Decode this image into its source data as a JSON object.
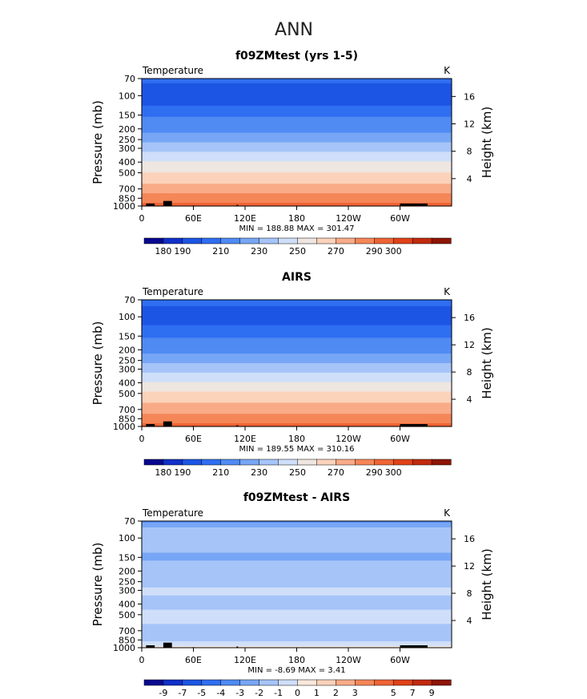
{
  "page": {
    "title": "ANN"
  },
  "colors": {
    "abs_bins": [
      "#08088f",
      "#1030c8",
      "#1c55e4",
      "#2f6ef0",
      "#4f8bf3",
      "#77a6f6",
      "#a6c4f8",
      "#cfdff9",
      "#eee6e0",
      "#fbd2ba",
      "#f9ab88",
      "#f58658",
      "#ef6434",
      "#e04218",
      "#c12a0d",
      "#8e1506"
    ],
    "diff_bins": [
      "#08088f",
      "#1030c8",
      "#1c55e4",
      "#2f6ef0",
      "#4f8bf3",
      "#77a6f6",
      "#a6c4f8",
      "#cfdff9",
      "#fbe8dd",
      "#fbd2ba",
      "#f9ab88",
      "#f58658",
      "#ef6434",
      "#e04218",
      "#c12a0d",
      "#8e1506"
    ],
    "topo": "#000000"
  },
  "chart_data": [
    {
      "type": "heatmap",
      "title": "f09ZMtest (yrs 1-5)",
      "variable_label": "Temperature",
      "units_label": "K",
      "ylabel": "Pressure (mb)",
      "ylabel_right": "Height (km)",
      "x_ticks": [
        "0",
        "60E",
        "120E",
        "180",
        "120W",
        "60W"
      ],
      "x_tick_values": [
        0,
        60,
        120,
        180,
        240,
        300
      ],
      "xlim": [
        0,
        360
      ],
      "y_ticks": [
        "70",
        "100",
        "150",
        "200",
        "250",
        "300",
        "400",
        "500",
        "700",
        "850",
        "1000"
      ],
      "y_tick_values": [
        70,
        100,
        150,
        200,
        250,
        300,
        400,
        500,
        700,
        850,
        1000
      ],
      "ylim": [
        70,
        1000
      ],
      "y_scale": "log",
      "right_ticks": [
        "4",
        "8",
        "12",
        "16"
      ],
      "right_tick_values": [
        4,
        8,
        12,
        16
      ],
      "stats_text": "MIN = 188.88  MAX = 301.47",
      "min": 188.88,
      "max": 301.47,
      "levels": [
        180,
        190,
        200,
        210,
        220,
        230,
        240,
        250,
        260,
        270,
        280,
        290,
        300
      ],
      "colorbar_labels": [
        "180",
        "190",
        "210",
        "230",
        "250",
        "270",
        "290",
        "300"
      ],
      "profile": [
        [
          70,
          205
        ],
        [
          90,
          194
        ],
        [
          100,
          192
        ],
        [
          110,
          195
        ],
        [
          130,
          203
        ],
        [
          150,
          209
        ],
        [
          175,
          213
        ],
        [
          200,
          217
        ],
        [
          250,
          226
        ],
        [
          300,
          236
        ],
        [
          350,
          244
        ],
        [
          400,
          250
        ],
        [
          500,
          260
        ],
        [
          600,
          268
        ],
        [
          700,
          275
        ],
        [
          850,
          285
        ],
        [
          1000,
          293
        ]
      ]
    },
    {
      "type": "heatmap",
      "title": "AIRS",
      "variable_label": "Temperature",
      "units_label": "K",
      "ylabel": "Pressure (mb)",
      "ylabel_right": "Height (km)",
      "x_ticks": [
        "0",
        "60E",
        "120E",
        "180",
        "120W",
        "60W"
      ],
      "x_tick_values": [
        0,
        60,
        120,
        180,
        240,
        300
      ],
      "xlim": [
        0,
        360
      ],
      "y_ticks": [
        "70",
        "100",
        "150",
        "200",
        "250",
        "300",
        "400",
        "500",
        "700",
        "850",
        "1000"
      ],
      "y_tick_values": [
        70,
        100,
        150,
        200,
        250,
        300,
        400,
        500,
        700,
        850,
        1000
      ],
      "ylim": [
        70,
        1000
      ],
      "y_scale": "log",
      "right_ticks": [
        "4",
        "8",
        "12",
        "16"
      ],
      "right_tick_values": [
        4,
        8,
        12,
        16
      ],
      "stats_text": "MIN = 189.55  MAX = 310.16",
      "min": 189.55,
      "max": 310.16,
      "levels": [
        180,
        190,
        200,
        210,
        220,
        230,
        240,
        250,
        260,
        270,
        280,
        290,
        300
      ],
      "colorbar_labels": [
        "180",
        "190",
        "210",
        "230",
        "250",
        "270",
        "290",
        "300"
      ],
      "profile": [
        [
          70,
          205
        ],
        [
          90,
          195
        ],
        [
          100,
          193
        ],
        [
          110,
          196
        ],
        [
          130,
          203
        ],
        [
          150,
          209
        ],
        [
          175,
          213
        ],
        [
          200,
          217
        ],
        [
          250,
          226
        ],
        [
          300,
          236
        ],
        [
          350,
          244
        ],
        [
          400,
          251
        ],
        [
          500,
          261
        ],
        [
          600,
          269
        ],
        [
          700,
          276
        ],
        [
          850,
          286
        ],
        [
          1000,
          294
        ]
      ]
    },
    {
      "type": "heatmap",
      "title": "f09ZMtest - AIRS",
      "variable_label": "Temperature",
      "units_label": "K",
      "ylabel": "Pressure (mb)",
      "ylabel_right": "Height (km)",
      "x_ticks": [
        "0",
        "60E",
        "120E",
        "180",
        "120W",
        "60W"
      ],
      "x_tick_values": [
        0,
        60,
        120,
        180,
        240,
        300
      ],
      "xlim": [
        0,
        360
      ],
      "y_ticks": [
        "70",
        "100",
        "150",
        "200",
        "250",
        "300",
        "400",
        "500",
        "700",
        "850",
        "1000"
      ],
      "y_tick_values": [
        70,
        100,
        150,
        200,
        250,
        300,
        400,
        500,
        700,
        850,
        1000
      ],
      "ylim": [
        70,
        1000
      ],
      "y_scale": "log",
      "right_ticks": [
        "4",
        "8",
        "12",
        "16"
      ],
      "right_tick_values": [
        4,
        8,
        12,
        16
      ],
      "stats_text": "MIN = -8.69  MAX = 3.41",
      "min": -8.69,
      "max": 3.41,
      "levels": [
        -9,
        -7,
        -5,
        -4,
        -3,
        -2,
        -1,
        0,
        1,
        2,
        3,
        4,
        5,
        7,
        9
      ],
      "colorbar_labels": [
        "-9",
        "-7",
        "-5",
        "-4",
        "-3",
        "-2",
        "-1",
        "0",
        "1",
        "2",
        "3",
        "5",
        "7",
        "9"
      ],
      "profile": [
        [
          70,
          -3.5
        ],
        [
          85,
          -1.5
        ],
        [
          100,
          -1.5
        ],
        [
          130,
          -1.8
        ],
        [
          150,
          -2.3
        ],
        [
          180,
          -1.6
        ],
        [
          250,
          -1.3
        ],
        [
          300,
          -0.8
        ],
        [
          400,
          -1.3
        ],
        [
          500,
          -0.7
        ],
        [
          700,
          -1.2
        ],
        [
          800,
          -1.6
        ],
        [
          900,
          -0.8
        ],
        [
          1000,
          0.4
        ]
      ]
    }
  ]
}
